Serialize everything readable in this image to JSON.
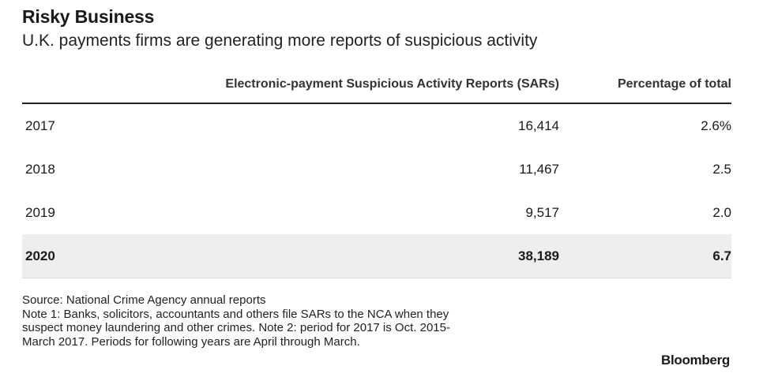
{
  "chart_data": {
    "type": "table",
    "title": "Risky Business",
    "subtitle": "U.K. payments firms are generating more reports of suspicious activity",
    "columns": [
      "",
      "Electronic-payment Suspicious Activity Reports (SARs)",
      "Percentage of total"
    ],
    "rows": [
      {
        "year": "2017",
        "sars": "16,414",
        "pct": "2.6%"
      },
      {
        "year": "2018",
        "sars": "11,467",
        "pct": "2.5"
      },
      {
        "year": "2019",
        "sars": "9,517",
        "pct": "2.0"
      },
      {
        "year": "2020",
        "sars": "38,189",
        "pct": "6.7"
      }
    ],
    "values": {
      "2017": {
        "sars": 16414,
        "pct": 2.6
      },
      "2018": {
        "sars": 11467,
        "pct": 2.5
      },
      "2019": {
        "sars": 9517,
        "pct": 2.0
      },
      "2020": {
        "sars": 38189,
        "pct": 6.7
      }
    }
  },
  "notes": {
    "line1": "Source: National Crime Agency annual reports",
    "line2": "Note 1: Banks, solicitors, accountants and others file SARs to the NCA when they",
    "line3": "suspect money laundering and other crimes. Note 2: period for 2017 is Oct. 2015-",
    "line4": "March 2017. Periods for following years are April through March."
  },
  "brand": "Bloomberg"
}
